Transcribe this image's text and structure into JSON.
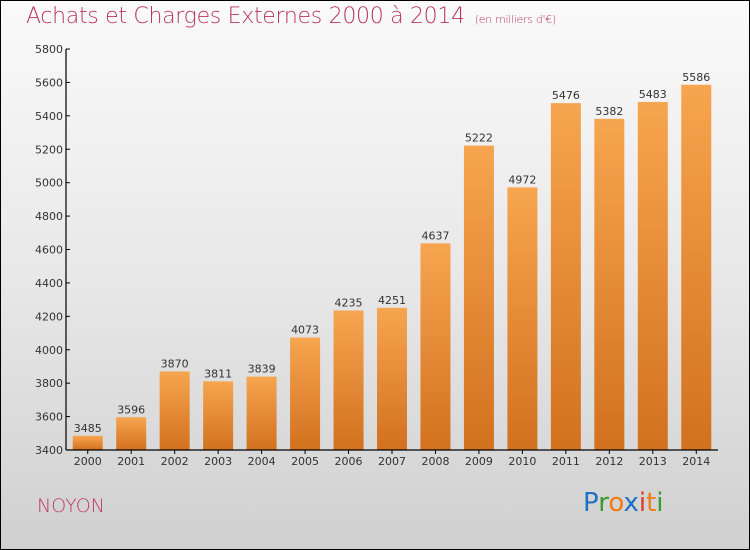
{
  "chart_data": {
    "type": "bar",
    "title": "Achats et Charges Externes 2000 à 2014",
    "subtitle": "(en milliers d'€)",
    "xlabel": "",
    "ylabel": "",
    "categories": [
      "2000",
      "2001",
      "2002",
      "2003",
      "2004",
      "2005",
      "2006",
      "2007",
      "2008",
      "2009",
      "2010",
      "2011",
      "2012",
      "2013",
      "2014"
    ],
    "values": [
      3485,
      3596,
      3870,
      3811,
      3839,
      4073,
      4235,
      4251,
      4637,
      5222,
      4972,
      5476,
      5382,
      5483,
      5586
    ],
    "ylim": [
      3400,
      5800
    ],
    "yticks": [
      3400,
      3600,
      3800,
      4000,
      4200,
      4400,
      4600,
      4800,
      5000,
      5200,
      5400,
      5600,
      5800
    ],
    "grid": false,
    "legend": "none",
    "bar_color_top": "#f7a550",
    "bar_color_bottom": "#d2711e"
  },
  "footer": {
    "city": "NOYON",
    "logo": [
      {
        "ch": "P",
        "color": "#1f6fc5"
      },
      {
        "ch": "r",
        "color": "#3a9a2e"
      },
      {
        "ch": "o",
        "color": "#f07d14"
      },
      {
        "ch": "x",
        "color": "#1f6fc5"
      },
      {
        "ch": "i",
        "color": "#e03a2a"
      },
      {
        "ch": "t",
        "color": "#f07d14"
      },
      {
        "ch": "i",
        "color": "#3a9a2e"
      }
    ]
  }
}
